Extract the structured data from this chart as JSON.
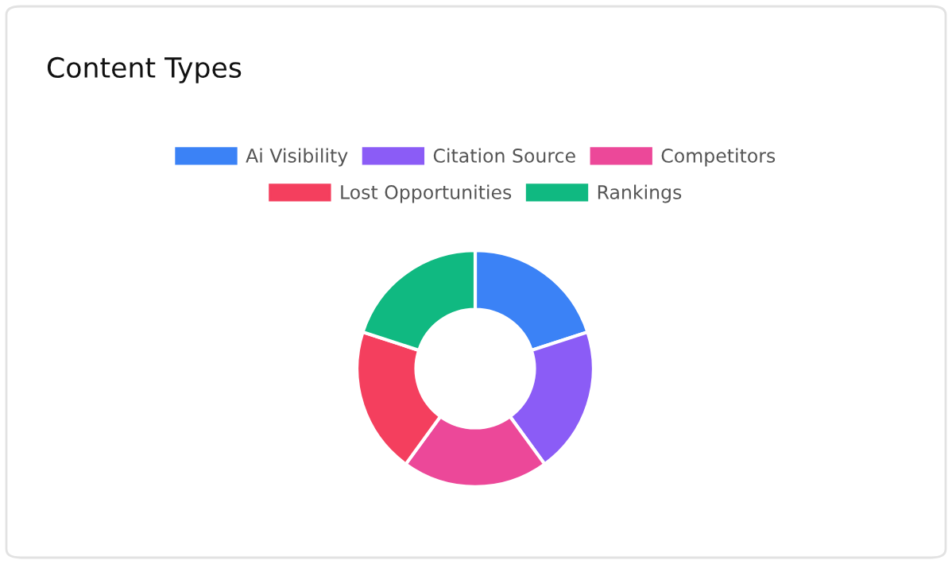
{
  "chart_data": {
    "type": "donut",
    "title": "Content Types",
    "categories": [
      "Ai Visibility",
      "Citation Source",
      "Competitors",
      "Lost Opportunities",
      "Rankings"
    ],
    "values": [
      20,
      20,
      20,
      20,
      20
    ],
    "colors": [
      "#3b82f6",
      "#8b5cf6",
      "#ec4899",
      "#f43f5e",
      "#10b981"
    ],
    "legend": "top"
  }
}
